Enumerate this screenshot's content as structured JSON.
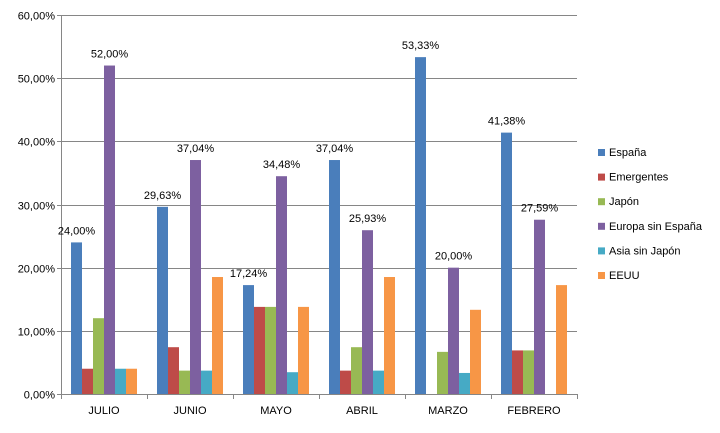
{
  "chart_data": {
    "type": "bar",
    "categories": [
      "JULIO",
      "JUNIO",
      "MAYO",
      "ABRIL",
      "MARZO",
      "FEBRERO"
    ],
    "series": [
      {
        "name": "España",
        "color": "#4A7EBB",
        "values": [
          24.0,
          29.63,
          17.24,
          37.04,
          53.33,
          41.38
        ]
      },
      {
        "name": "Emergentes",
        "color": "#BE4B48",
        "values": [
          4.0,
          7.41,
          13.79,
          3.7,
          0,
          6.9
        ]
      },
      {
        "name": "Japón",
        "color": "#98B954",
        "values": [
          12.0,
          3.7,
          13.79,
          7.41,
          6.67,
          6.9
        ]
      },
      {
        "name": "Europa sin España",
        "color": "#7D60A0",
        "values": [
          52.0,
          37.04,
          34.48,
          25.93,
          20.0,
          27.59
        ]
      },
      {
        "name": "Asia sin Japón",
        "color": "#46AAC5",
        "values": [
          4.0,
          3.7,
          3.45,
          3.7,
          3.33,
          0
        ]
      },
      {
        "name": "EEUU",
        "color": "#F79646",
        "values": [
          4.0,
          18.52,
          13.79,
          18.52,
          13.33,
          17.24
        ]
      }
    ],
    "data_labels": [
      {
        "series": "España",
        "category": "JULIO",
        "text": "24,00%"
      },
      {
        "series": "Europa sin España",
        "category": "JULIO",
        "text": "52,00%"
      },
      {
        "series": "España",
        "category": "JUNIO",
        "text": "29,63%"
      },
      {
        "series": "Europa sin España",
        "category": "JUNIO",
        "text": "37,04%"
      },
      {
        "series": "España",
        "category": "MAYO",
        "text": "17,24%"
      },
      {
        "series": "Europa sin España",
        "category": "MAYO",
        "text": "34,48%"
      },
      {
        "series": "España",
        "category": "ABRIL",
        "text": "37,04%"
      },
      {
        "series": "Europa sin España",
        "category": "ABRIL",
        "text": "25,93%"
      },
      {
        "series": "España",
        "category": "MARZO",
        "text": "53,33%"
      },
      {
        "series": "Europa sin España",
        "category": "MARZO",
        "text": "20,00%"
      },
      {
        "series": "España",
        "category": "FEBRERO",
        "text": "41,38%"
      },
      {
        "series": "Europa sin España",
        "category": "FEBRERO",
        "text": "27,59%"
      }
    ],
    "y_ticks": [
      "0,00%",
      "10,00%",
      "20,00%",
      "30,00%",
      "40,00%",
      "50,00%",
      "60,00%"
    ],
    "ylim": [
      0,
      60
    ],
    "grid": true,
    "legend_position": "right"
  }
}
